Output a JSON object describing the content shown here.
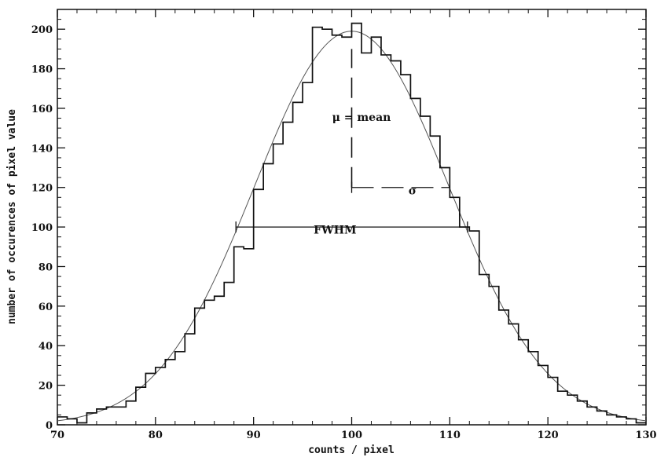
{
  "chart_data": {
    "type": "line",
    "title": "",
    "xlabel": "counts / pixel",
    "ylabel": "number of occurences of pixel value",
    "xlim": [
      70,
      130
    ],
    "ylim": [
      0,
      210
    ],
    "xticks": [
      70,
      80,
      90,
      100,
      110,
      120,
      130
    ],
    "yticks": [
      0,
      20,
      40,
      60,
      80,
      100,
      120,
      140,
      160,
      180,
      200
    ],
    "grid": false,
    "legend": "none",
    "series": [
      {
        "style": "histogram-steps",
        "bin_width": 1,
        "bin_start": 70,
        "values": [
          4,
          3,
          1,
          6,
          8,
          9,
          9,
          12,
          19,
          26,
          29,
          33,
          37,
          46,
          59,
          63,
          65,
          72,
          90,
          89,
          119,
          132,
          142,
          153,
          163,
          173,
          201,
          200,
          197,
          196,
          203,
          188,
          196,
          187,
          184,
          177,
          165,
          156,
          146,
          130,
          115,
          100,
          98,
          76,
          70,
          58,
          51,
          43,
          37,
          30,
          24,
          17,
          15,
          12,
          9,
          7,
          5,
          4,
          3,
          1
        ]
      },
      {
        "style": "gaussian-fit",
        "mean": 100,
        "sigma": 9.9,
        "amplitude": 199
      }
    ],
    "annotations": [
      {
        "text": "μ = mean",
        "x": 101,
        "y": 154
      },
      {
        "text": "σ",
        "x": 106.2,
        "y": 117
      },
      {
        "text": "FWHM",
        "x": 98.3,
        "y": 97
      },
      {
        "type": "dashed-vline",
        "x": 100,
        "y_range": [
          120,
          190
        ]
      },
      {
        "type": "hbar",
        "x_range": [
          100,
          110
        ],
        "y": 120,
        "dashed": true
      },
      {
        "type": "hbar",
        "x_range": [
          88.2,
          111.8
        ],
        "y": 100,
        "dashed": false
      }
    ]
  }
}
